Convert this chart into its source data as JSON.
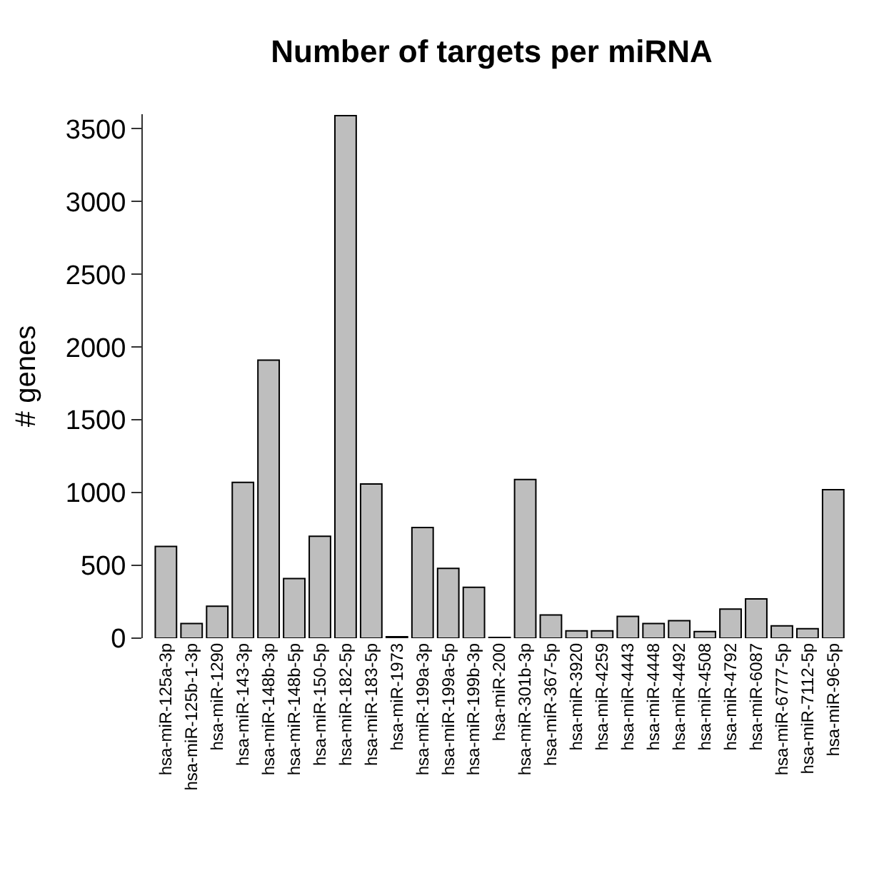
{
  "chart_data": {
    "type": "bar",
    "title": "Number of targets per miRNA",
    "ylabel": "# genes",
    "categories": [
      "hsa-miR-125a-3p",
      "hsa-miR-125b-1-3p",
      "hsa-miR-1290",
      "hsa-miR-143-3p",
      "hsa-miR-148b-3p",
      "hsa-miR-148b-5p",
      "hsa-miR-150-5p",
      "hsa-miR-182-5p",
      "hsa-miR-183-5p",
      "hsa-miR-1973",
      "hsa-miR-199a-3p",
      "hsa-miR-199a-5p",
      "hsa-miR-199b-3p",
      "hsa-miR-200",
      "hsa-miR-301b-3p",
      "hsa-miR-367-5p",
      "hsa-miR-3920",
      "hsa-miR-4259",
      "hsa-miR-4443",
      "hsa-miR-4448",
      "hsa-miR-4492",
      "hsa-miR-4508",
      "hsa-miR-4792",
      "hsa-miR-6087",
      "hsa-miR-6777-5p",
      "hsa-miR-7112-5p",
      "hsa-miR-96-5p"
    ],
    "values": [
      630,
      100,
      220,
      1070,
      1910,
      410,
      700,
      3590,
      1060,
      10,
      760,
      480,
      350,
      5,
      1090,
      160,
      50,
      50,
      150,
      100,
      120,
      45,
      200,
      270,
      85,
      65,
      1020
    ],
    "color": "#bebebe",
    "ylim": [
      0,
      3600
    ],
    "yticks": [
      0,
      500,
      1000,
      1500,
      2000,
      2500,
      3000,
      3500
    ]
  }
}
